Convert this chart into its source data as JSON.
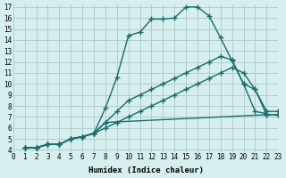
{
  "xlabel": "Humidex (Indice chaleur)",
  "ylabel": "",
  "bg_color": "#d6eeee",
  "grid_color": "#b0cccc",
  "line_color": "#1a6b6b",
  "xlim": [
    0,
    23
  ],
  "ylim": [
    4,
    17
  ],
  "xticks": [
    0,
    1,
    2,
    3,
    4,
    5,
    6,
    7,
    8,
    9,
    10,
    11,
    12,
    13,
    14,
    15,
    16,
    17,
    18,
    19,
    20,
    21,
    22,
    23
  ],
  "yticks": [
    4,
    5,
    6,
    7,
    8,
    9,
    10,
    11,
    12,
    13,
    14,
    15,
    16,
    17
  ],
  "series": [
    {
      "x": [
        1,
        2,
        3,
        4,
        5,
        6,
        7,
        8,
        9,
        10,
        11,
        12,
        13,
        14,
        15,
        16,
        17,
        18,
        19,
        20,
        21,
        22
      ],
      "y": [
        4.2,
        4.2,
        4.5,
        4.5,
        5.0,
        5.2,
        5.5,
        7.8,
        10.6,
        14.4,
        14.7,
        15.9,
        15.9,
        16.0,
        17.0,
        17.0,
        16.2,
        14.2,
        12.1,
        10.0,
        7.5,
        7.3
      ]
    },
    {
      "x": [
        1,
        2,
        3,
        4,
        5,
        6,
        7,
        8,
        9,
        10,
        11,
        12,
        13,
        14,
        15,
        16,
        17,
        18,
        19,
        20,
        21,
        22,
        23
      ],
      "y": [
        4.2,
        4.2,
        4.5,
        4.5,
        5.0,
        5.2,
        5.5,
        6.5,
        7.5,
        8.5,
        9.0,
        9.5,
        10.0,
        10.5,
        11.0,
        11.5,
        12.0,
        12.5,
        12.2,
        10.0,
        9.5,
        7.2,
        7.2
      ]
    },
    {
      "x": [
        1,
        2,
        3,
        4,
        5,
        6,
        7,
        8,
        22,
        23
      ],
      "y": [
        4.2,
        4.2,
        4.5,
        4.5,
        5.0,
        5.2,
        5.5,
        6.5,
        7.2,
        7.2
      ]
    },
    {
      "x": [
        1,
        2,
        3,
        4,
        5,
        6,
        7,
        8,
        9,
        10,
        11,
        12,
        13,
        14,
        15,
        16,
        17,
        18,
        19,
        20,
        21,
        22,
        23
      ],
      "y": [
        4.2,
        4.2,
        4.5,
        4.5,
        5.0,
        5.2,
        5.5,
        6.0,
        6.5,
        7.0,
        7.5,
        8.0,
        8.5,
        9.0,
        9.5,
        10.0,
        10.5,
        11.0,
        11.5,
        11.0,
        9.5,
        7.5,
        7.5
      ]
    }
  ]
}
